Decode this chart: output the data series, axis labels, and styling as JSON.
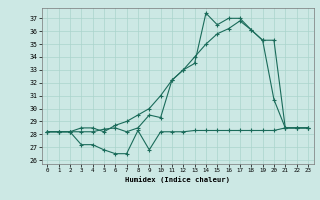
{
  "xlabel": "Humidex (Indice chaleur)",
  "bg_color": "#cce8e4",
  "line_color": "#1a6b5a",
  "grid_color": "#aad4cc",
  "xlim": [
    -0.5,
    23.5
  ],
  "ylim": [
    25.7,
    37.8
  ],
  "yticks": [
    26,
    27,
    28,
    29,
    30,
    31,
    32,
    33,
    34,
    35,
    36,
    37
  ],
  "xticks": [
    0,
    1,
    2,
    3,
    4,
    5,
    6,
    7,
    8,
    9,
    10,
    11,
    12,
    13,
    14,
    15,
    16,
    17,
    18,
    19,
    20,
    21,
    22,
    23
  ],
  "line1_x": [
    0,
    1,
    2,
    3,
    4,
    5,
    6,
    7,
    8,
    9,
    10,
    11,
    12,
    13,
    14,
    15,
    16,
    17,
    18,
    19,
    20,
    21,
    22,
    23
  ],
  "line1_y": [
    28.2,
    28.2,
    28.2,
    28.2,
    28.2,
    28.4,
    28.5,
    28.2,
    28.5,
    29.5,
    29.3,
    32.2,
    33.0,
    33.5,
    37.4,
    36.5,
    37.0,
    37.0,
    36.1,
    35.3,
    30.7,
    28.5,
    28.5,
    28.5
  ],
  "line2_x": [
    0,
    1,
    2,
    3,
    4,
    5,
    6,
    7,
    8,
    9,
    10,
    11,
    12,
    13,
    14,
    15,
    16,
    17,
    18,
    19,
    20,
    21,
    22,
    23
  ],
  "line2_y": [
    28.2,
    28.2,
    28.2,
    28.5,
    28.5,
    28.2,
    28.7,
    29.0,
    29.5,
    30.0,
    31.0,
    32.2,
    33.0,
    34.0,
    35.0,
    35.8,
    36.2,
    36.8,
    36.1,
    35.3,
    35.3,
    28.5,
    28.5,
    28.5
  ],
  "line3_x": [
    0,
    1,
    2,
    3,
    4,
    5,
    6,
    7,
    8,
    9,
    10,
    11,
    12,
    13,
    14,
    15,
    16,
    17,
    18,
    19,
    20,
    21,
    22,
    23
  ],
  "line3_y": [
    28.2,
    28.2,
    28.2,
    27.2,
    27.2,
    26.8,
    26.5,
    26.5,
    28.3,
    26.8,
    28.2,
    28.2,
    28.2,
    28.3,
    28.3,
    28.3,
    28.3,
    28.3,
    28.3,
    28.3,
    28.3,
    28.5,
    28.5,
    28.5
  ]
}
